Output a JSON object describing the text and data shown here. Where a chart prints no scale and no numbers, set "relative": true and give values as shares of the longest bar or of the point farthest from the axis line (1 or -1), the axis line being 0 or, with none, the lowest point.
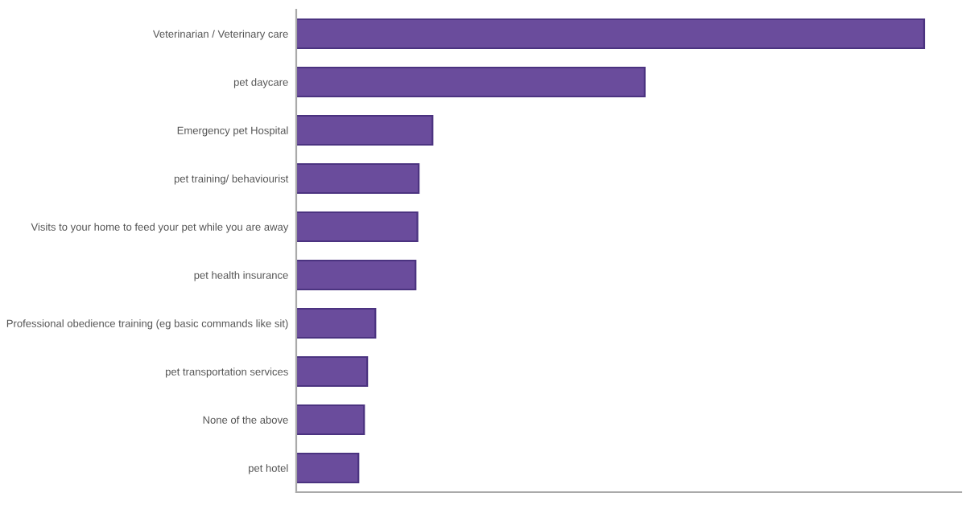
{
  "chart_data": {
    "type": "bar",
    "orientation": "horizontal",
    "relative": true,
    "color": "#6a4c9c",
    "categories": [
      "Veterinarian / Veterinary care",
      "pet daycare",
      "Emergency pet Hospital",
      "pet training/ behaviourist",
      "Visits to your home to feed your pet while you are away",
      "pet health insurance",
      "Professional obedience training (eg basic commands like sit)",
      "pet transportation services",
      "None of the above",
      "pet hotel"
    ],
    "values": [
      1,
      0.555,
      0.217,
      0.195,
      0.193,
      0.19,
      0.126,
      0.113,
      0.108,
      0.099
    ],
    "grid": false,
    "legend": false
  }
}
